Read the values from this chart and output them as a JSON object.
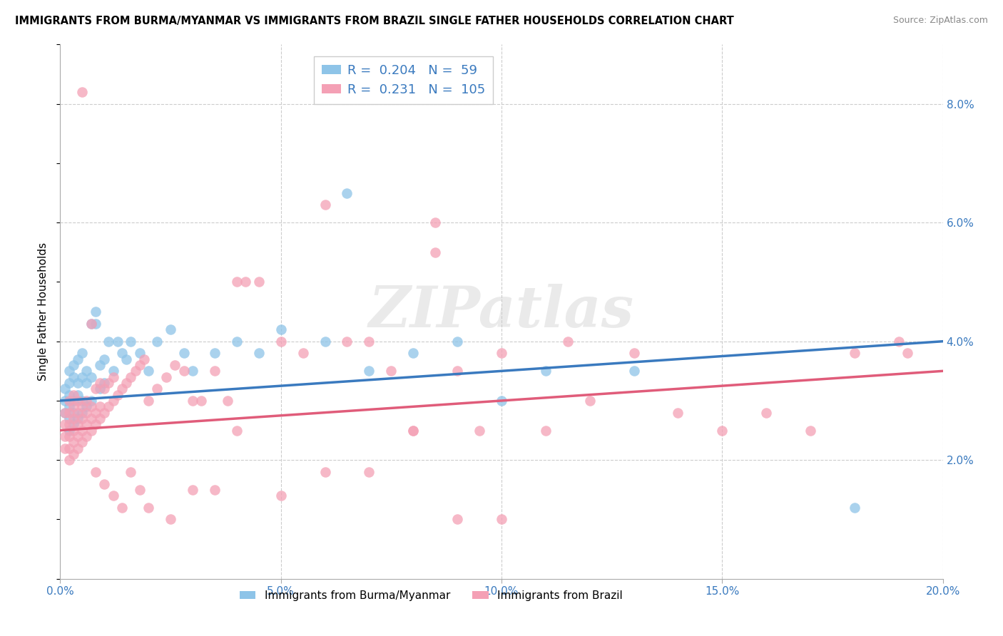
{
  "title": "IMMIGRANTS FROM BURMA/MYANMAR VS IMMIGRANTS FROM BRAZIL SINGLE FATHER HOUSEHOLDS CORRELATION CHART",
  "source": "Source: ZipAtlas.com",
  "ylabel": "Single Father Households",
  "xlim": [
    0.0,
    0.2
  ],
  "ylim": [
    0.0,
    0.09
  ],
  "xticks": [
    0.0,
    0.05,
    0.1,
    0.15,
    0.2
  ],
  "xtick_labels": [
    "0.0%",
    "5.0%",
    "10.0%",
    "15.0%",
    "20.0%"
  ],
  "yticks": [
    0.0,
    0.02,
    0.04,
    0.06,
    0.08
  ],
  "ytick_labels": [
    "",
    "2.0%",
    "4.0%",
    "6.0%",
    "8.0%"
  ],
  "color_blue": "#8ec4e8",
  "color_pink": "#f4a0b5",
  "line_blue": "#3a7abf",
  "line_pink": "#e05c7a",
  "R_blue": 0.204,
  "N_blue": 59,
  "R_pink": 0.231,
  "N_pink": 105,
  "watermark_text": "ZIPatlas",
  "legend_label_blue": "Immigrants from Burma/Myanmar",
  "legend_label_pink": "Immigrants from Brazil",
  "blue_x": [
    0.001,
    0.001,
    0.001,
    0.002,
    0.002,
    0.002,
    0.002,
    0.002,
    0.002,
    0.003,
    0.003,
    0.003,
    0.003,
    0.003,
    0.004,
    0.004,
    0.004,
    0.004,
    0.005,
    0.005,
    0.005,
    0.005,
    0.006,
    0.006,
    0.006,
    0.007,
    0.007,
    0.007,
    0.008,
    0.008,
    0.009,
    0.009,
    0.01,
    0.01,
    0.011,
    0.012,
    0.013,
    0.014,
    0.015,
    0.016,
    0.018,
    0.02,
    0.022,
    0.025,
    0.028,
    0.03,
    0.035,
    0.04,
    0.045,
    0.05,
    0.06,
    0.065,
    0.07,
    0.08,
    0.09,
    0.1,
    0.11,
    0.13,
    0.18
  ],
  "blue_y": [
    0.028,
    0.03,
    0.032,
    0.025,
    0.027,
    0.029,
    0.031,
    0.033,
    0.035,
    0.026,
    0.028,
    0.03,
    0.034,
    0.036,
    0.027,
    0.031,
    0.033,
    0.037,
    0.028,
    0.03,
    0.034,
    0.038,
    0.029,
    0.033,
    0.035,
    0.03,
    0.034,
    0.043,
    0.043,
    0.045,
    0.032,
    0.036,
    0.033,
    0.037,
    0.04,
    0.035,
    0.04,
    0.038,
    0.037,
    0.04,
    0.038,
    0.035,
    0.04,
    0.042,
    0.038,
    0.035,
    0.038,
    0.04,
    0.038,
    0.042,
    0.04,
    0.065,
    0.035,
    0.038,
    0.04,
    0.03,
    0.035,
    0.035,
    0.012
  ],
  "pink_x": [
    0.001,
    0.001,
    0.001,
    0.001,
    0.002,
    0.002,
    0.002,
    0.002,
    0.002,
    0.002,
    0.003,
    0.003,
    0.003,
    0.003,
    0.003,
    0.003,
    0.004,
    0.004,
    0.004,
    0.004,
    0.004,
    0.005,
    0.005,
    0.005,
    0.005,
    0.005,
    0.006,
    0.006,
    0.006,
    0.006,
    0.007,
    0.007,
    0.007,
    0.007,
    0.008,
    0.008,
    0.008,
    0.009,
    0.009,
    0.009,
    0.01,
    0.01,
    0.011,
    0.011,
    0.012,
    0.012,
    0.013,
    0.014,
    0.015,
    0.016,
    0.017,
    0.018,
    0.019,
    0.02,
    0.022,
    0.024,
    0.026,
    0.028,
    0.03,
    0.032,
    0.035,
    0.038,
    0.04,
    0.042,
    0.045,
    0.05,
    0.055,
    0.06,
    0.065,
    0.07,
    0.075,
    0.08,
    0.085,
    0.09,
    0.095,
    0.1,
    0.11,
    0.115,
    0.12,
    0.13,
    0.14,
    0.15,
    0.16,
    0.17,
    0.18,
    0.19,
    0.192,
    0.008,
    0.01,
    0.012,
    0.014,
    0.016,
    0.018,
    0.02,
    0.025,
    0.03,
    0.035,
    0.04,
    0.05,
    0.06,
    0.07,
    0.08,
    0.09,
    0.1,
    0.085
  ],
  "pink_y": [
    0.022,
    0.024,
    0.026,
    0.028,
    0.02,
    0.022,
    0.024,
    0.026,
    0.028,
    0.03,
    0.021,
    0.023,
    0.025,
    0.027,
    0.029,
    0.031,
    0.022,
    0.024,
    0.026,
    0.028,
    0.03,
    0.023,
    0.025,
    0.027,
    0.029,
    0.082,
    0.024,
    0.026,
    0.028,
    0.03,
    0.025,
    0.027,
    0.029,
    0.043,
    0.026,
    0.028,
    0.032,
    0.027,
    0.029,
    0.033,
    0.028,
    0.032,
    0.029,
    0.033,
    0.03,
    0.034,
    0.031,
    0.032,
    0.033,
    0.034,
    0.035,
    0.036,
    0.037,
    0.03,
    0.032,
    0.034,
    0.036,
    0.035,
    0.03,
    0.03,
    0.035,
    0.03,
    0.05,
    0.05,
    0.05,
    0.04,
    0.038,
    0.063,
    0.04,
    0.04,
    0.035,
    0.025,
    0.055,
    0.035,
    0.025,
    0.038,
    0.025,
    0.04,
    0.03,
    0.038,
    0.028,
    0.025,
    0.028,
    0.025,
    0.038,
    0.04,
    0.038,
    0.018,
    0.016,
    0.014,
    0.012,
    0.018,
    0.015,
    0.012,
    0.01,
    0.015,
    0.015,
    0.025,
    0.014,
    0.018,
    0.018,
    0.025,
    0.01,
    0.01,
    0.06
  ]
}
